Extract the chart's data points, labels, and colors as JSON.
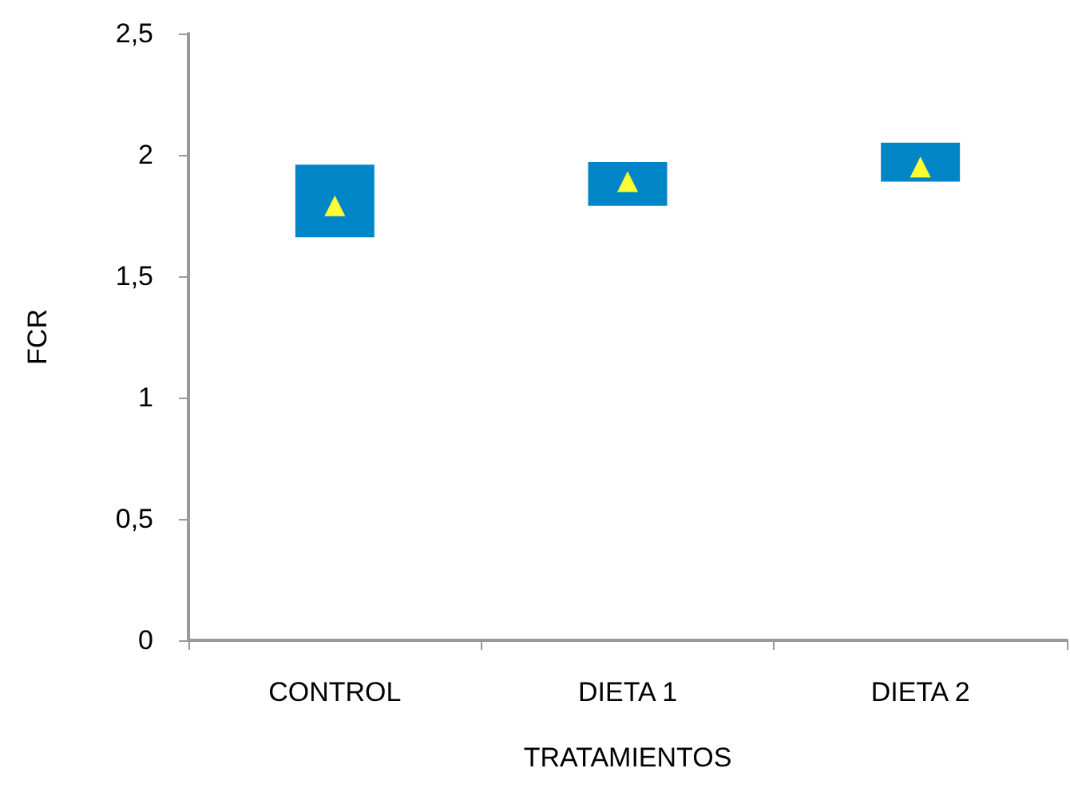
{
  "chart_data": {
    "type": "bar",
    "xlabel": "TRATAMIENTOS",
    "ylabel": "FCR",
    "categories": [
      "CONTROL",
      "DIETA 1",
      "DIETA 2"
    ],
    "ylim": [
      0,
      2.5
    ],
    "yticks": [
      {
        "value": 0,
        "label": "0"
      },
      {
        "value": 0.5,
        "label": "0,5"
      },
      {
        "value": 1,
        "label": "1"
      },
      {
        "value": 1.5,
        "label": "1,5"
      },
      {
        "value": 2,
        "label": "2"
      },
      {
        "value": 2.5,
        "label": "2,5"
      }
    ],
    "grid": false,
    "series": [
      {
        "color": "#0086c6",
        "base": [
          1.66,
          1.79,
          1.89
        ],
        "values": [
          0.3,
          0.18,
          0.16
        ]
      },
      {
        "type": "scatter",
        "color": "#ffff33",
        "marker": "triangle",
        "x": [
          "CONTROL",
          "DIETA 1",
          "DIETA 2"
        ],
        "values": [
          1.79,
          1.89,
          1.95
        ]
      }
    ]
  }
}
